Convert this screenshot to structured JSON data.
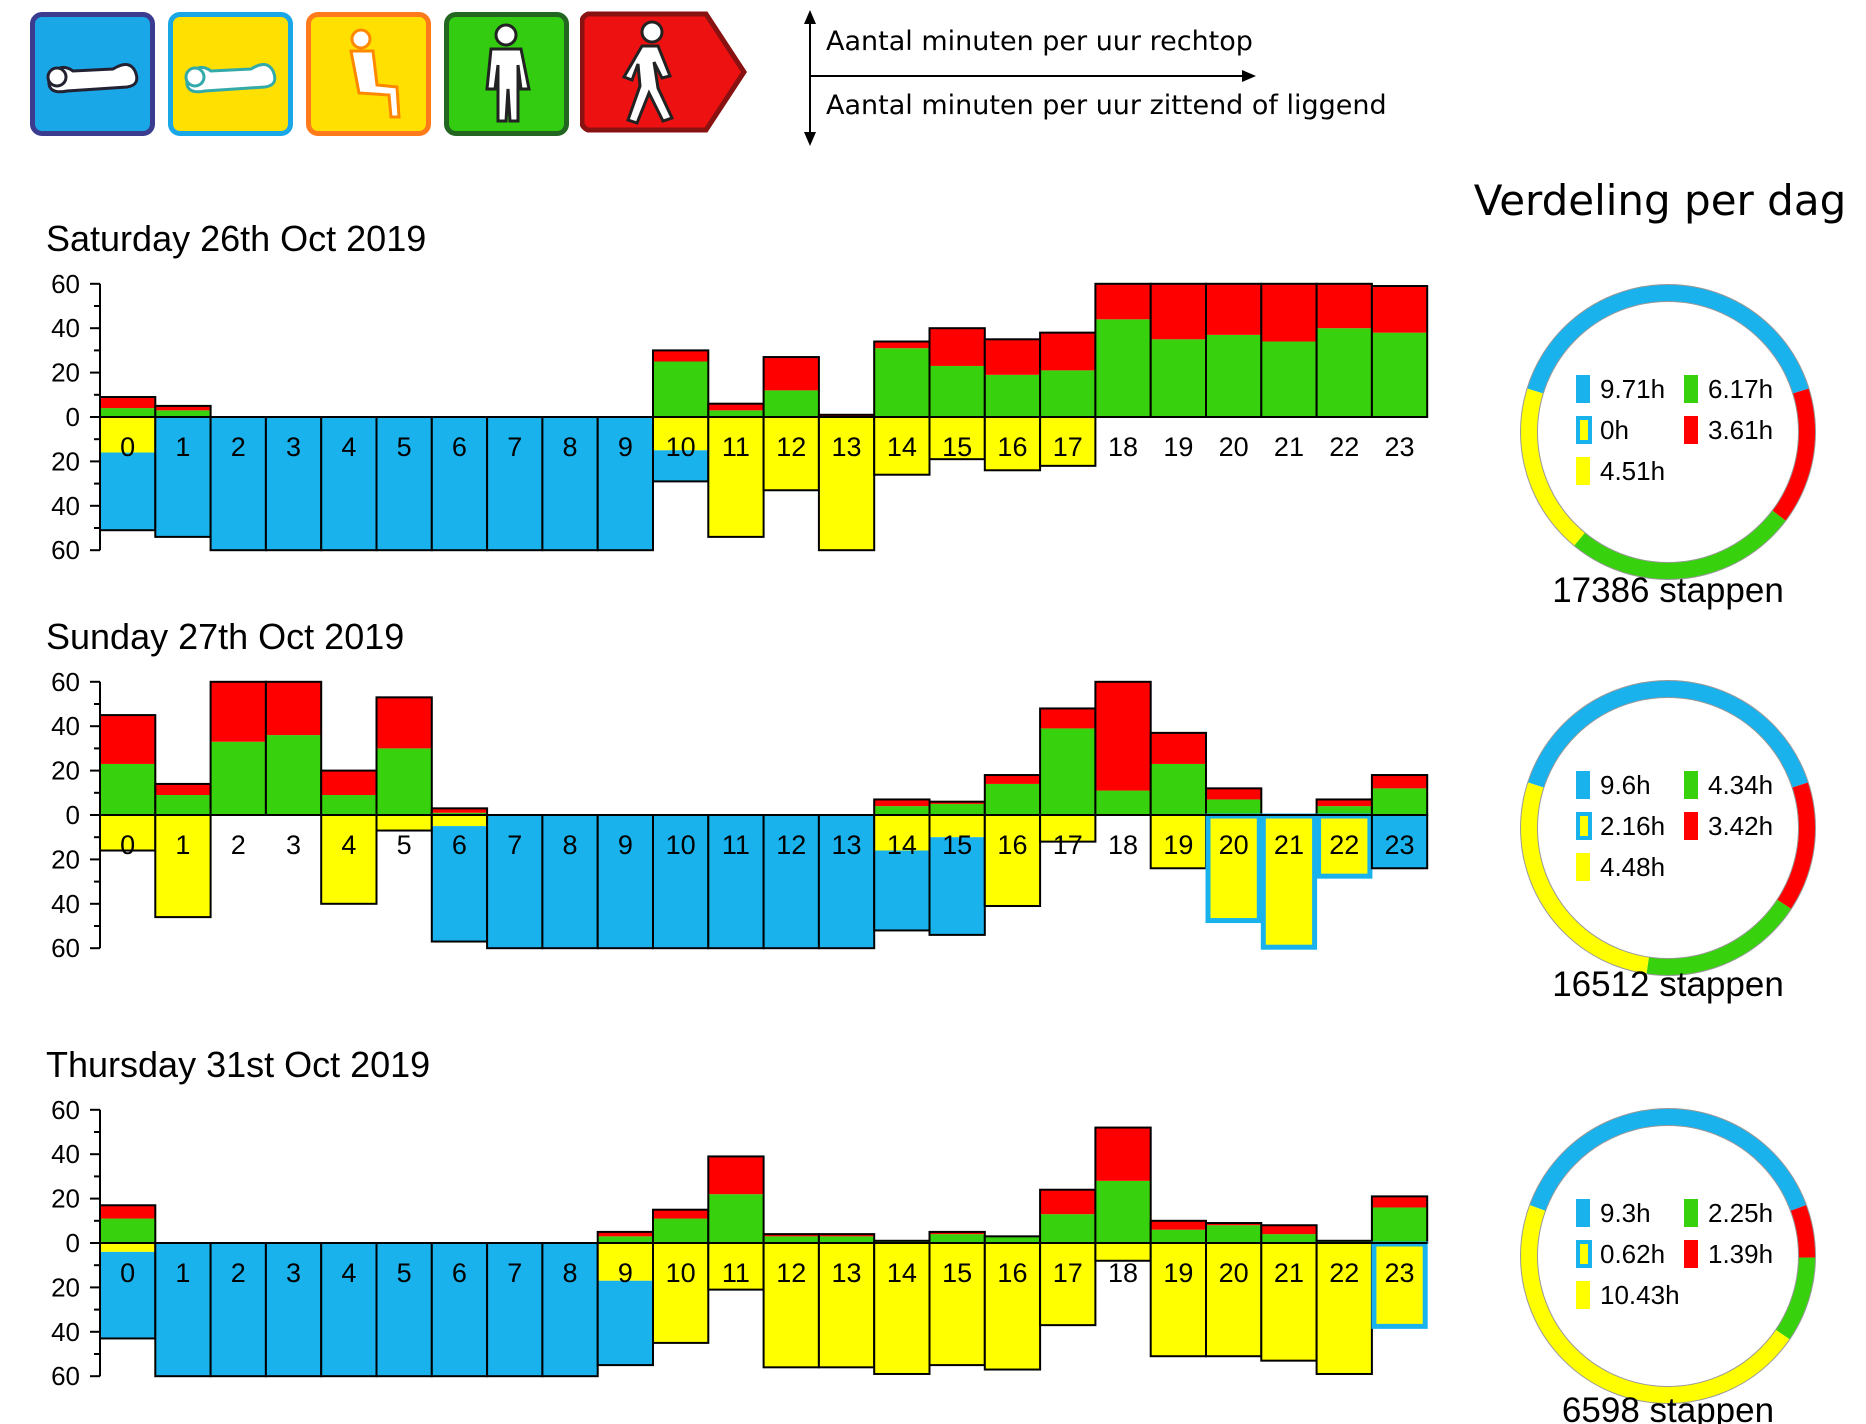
{
  "legend": {
    "icons": [
      {
        "name": "lying-icon",
        "color": "#1aa7e8",
        "border": "#3b3b8f"
      },
      {
        "name": "lying-alt-icon",
        "color": "#ffe000",
        "border": "#1aa7e8"
      },
      {
        "name": "sitting-icon",
        "color": "#ffe000",
        "border": "#ff7a1a"
      },
      {
        "name": "standing-icon",
        "color": "#33cc11",
        "border": "#226622"
      },
      {
        "name": "walking-icon",
        "color": "#ee1111",
        "border": "#881111"
      }
    ],
    "axis_note_up": "Aantal minuten per uur rechtop",
    "axis_note_down": "Aantal minuten per uur zittend of liggend"
  },
  "summary_title": "Verdeling per dag",
  "colors": {
    "blue": "#19b2ec",
    "yellow": "#ffff00",
    "green": "#38d10d",
    "red": "#ff0000",
    "highlight": "#19b2ec"
  },
  "chart_data": [
    {
      "type": "bar",
      "title": "Saturday 26th Oct 2019",
      "categories": [
        "0",
        "1",
        "2",
        "3",
        "4",
        "5",
        "6",
        "7",
        "8",
        "9",
        "10",
        "11",
        "12",
        "13",
        "14",
        "15",
        "16",
        "17",
        "18",
        "19",
        "20",
        "21",
        "22",
        "23"
      ],
      "ylim": [
        -60,
        60
      ],
      "yticks": [
        "60",
        "40",
        "20",
        "0",
        "20",
        "40",
        "60"
      ],
      "series": [
        {
          "values": [
            4,
            3,
            0,
            0,
            0,
            0,
            0,
            0,
            0,
            0,
            25,
            3,
            12,
            0,
            31,
            23,
            19,
            21,
            44,
            35,
            37,
            34,
            40,
            38
          ]
        },
        {
          "values": [
            5,
            2,
            0,
            0,
            0,
            0,
            0,
            0,
            0,
            0,
            5,
            3,
            15,
            1,
            3,
            17,
            16,
            17,
            16,
            25,
            23,
            26,
            20,
            21
          ]
        },
        {
          "values": [
            16,
            0,
            0,
            0,
            0,
            0,
            0,
            0,
            0,
            0,
            15,
            54,
            33,
            60,
            26,
            19,
            24,
            22,
            0,
            0,
            0,
            0,
            0,
            0
          ]
        },
        {
          "values": [
            35,
            54,
            60,
            60,
            60,
            60,
            60,
            60,
            60,
            60,
            14,
            0,
            0,
            0,
            0,
            0,
            0,
            0,
            0,
            0,
            0,
            0,
            0,
            0
          ]
        },
        {
          "values": [
            0,
            0,
            0,
            0,
            0,
            0,
            0,
            0,
            0,
            0,
            0,
            0,
            0,
            0,
            0,
            0,
            0,
            0,
            0,
            0,
            0,
            0,
            0,
            0
          ]
        }
      ],
      "donut": {
        "blue": "9.71h",
        "outline": "0h",
        "yellow": "4.51h",
        "green": "6.17h",
        "red": "3.61h",
        "values": [
          9.71,
          3.61,
          6.17,
          4.51,
          0
        ]
      },
      "steps": "17386 stappen"
    },
    {
      "type": "bar",
      "title": "Sunday 27th Oct 2019",
      "categories": [
        "0",
        "1",
        "2",
        "3",
        "4",
        "5",
        "6",
        "7",
        "8",
        "9",
        "10",
        "11",
        "12",
        "13",
        "14",
        "15",
        "16",
        "17",
        "18",
        "19",
        "20",
        "21",
        "22",
        "23"
      ],
      "ylim": [
        -60,
        60
      ],
      "yticks": [
        "60",
        "40",
        "20",
        "0",
        "20",
        "40",
        "60"
      ],
      "series": [
        {
          "values": [
            23,
            9,
            33,
            36,
            9,
            30,
            1,
            0,
            0,
            0,
            0,
            0,
            0,
            0,
            4,
            5,
            14,
            39,
            11,
            23,
            7,
            0,
            4,
            12
          ]
        },
        {
          "values": [
            22,
            5,
            27,
            24,
            11,
            23,
            2,
            0,
            0,
            0,
            0,
            0,
            0,
            0,
            3,
            1,
            4,
            9,
            49,
            14,
            5,
            0,
            3,
            6
          ]
        },
        {
          "values": [
            16,
            46,
            0,
            0,
            40,
            7,
            5,
            0,
            0,
            0,
            0,
            0,
            0,
            0,
            16,
            10,
            41,
            12,
            0,
            24,
            0,
            0,
            0,
            0
          ]
        },
        {
          "values": [
            0,
            0,
            0,
            0,
            0,
            0,
            52,
            60,
            60,
            60,
            60,
            60,
            60,
            60,
            36,
            44,
            0,
            0,
            0,
            0,
            0,
            0,
            0,
            24
          ]
        },
        {
          "values": [
            0,
            0,
            0,
            0,
            0,
            0,
            0,
            0,
            0,
            0,
            0,
            0,
            0,
            0,
            0,
            0,
            0,
            0,
            0,
            0,
            48,
            60,
            28,
            0
          ]
        }
      ],
      "donut": {
        "blue": "9.6h",
        "outline": "2.16h",
        "yellow": "4.48h",
        "green": "4.34h",
        "red": "3.42h",
        "values": [
          9.6,
          3.42,
          4.34,
          4.48,
          2.16
        ]
      },
      "steps": "16512 stappen"
    },
    {
      "type": "bar",
      "title": "Thursday 31st Oct 2019",
      "categories": [
        "0",
        "1",
        "2",
        "3",
        "4",
        "5",
        "6",
        "7",
        "8",
        "9",
        "10",
        "11",
        "12",
        "13",
        "14",
        "15",
        "16",
        "17",
        "18",
        "19",
        "20",
        "21",
        "22",
        "23"
      ],
      "ylim": [
        -60,
        60
      ],
      "yticks": [
        "60",
        "40",
        "20",
        "0",
        "20",
        "40",
        "60"
      ],
      "series": [
        {
          "values": [
            11,
            0,
            0,
            0,
            0,
            0,
            0,
            0,
            0,
            3,
            11,
            22,
            3,
            3,
            1,
            4,
            3,
            13,
            28,
            6,
            8,
            4,
            1,
            16
          ]
        },
        {
          "values": [
            6,
            0,
            0,
            0,
            0,
            0,
            0,
            0,
            0,
            2,
            4,
            17,
            1,
            1,
            0,
            1,
            0,
            11,
            24,
            4,
            1,
            4,
            0,
            5
          ]
        },
        {
          "values": [
            4,
            0,
            0,
            0,
            0,
            0,
            0,
            0,
            0,
            17,
            45,
            21,
            56,
            56,
            59,
            55,
            57,
            37,
            8,
            51,
            51,
            53,
            59,
            0
          ]
        },
        {
          "values": [
            39,
            60,
            60,
            60,
            60,
            60,
            60,
            60,
            60,
            38,
            0,
            0,
            0,
            0,
            0,
            0,
            0,
            0,
            0,
            0,
            0,
            0,
            0,
            0
          ]
        },
        {
          "values": [
            0,
            0,
            0,
            0,
            0,
            0,
            0,
            0,
            0,
            0,
            0,
            0,
            0,
            0,
            0,
            0,
            0,
            0,
            0,
            0,
            0,
            0,
            0,
            38
          ]
        }
      ],
      "donut": {
        "blue": "9.3h",
        "outline": "0.62h",
        "yellow": "10.43h",
        "green": "2.25h",
        "red": "1.39h",
        "values": [
          9.3,
          1.39,
          2.25,
          10.43,
          0.62
        ]
      },
      "steps": "6598  stappen"
    }
  ]
}
